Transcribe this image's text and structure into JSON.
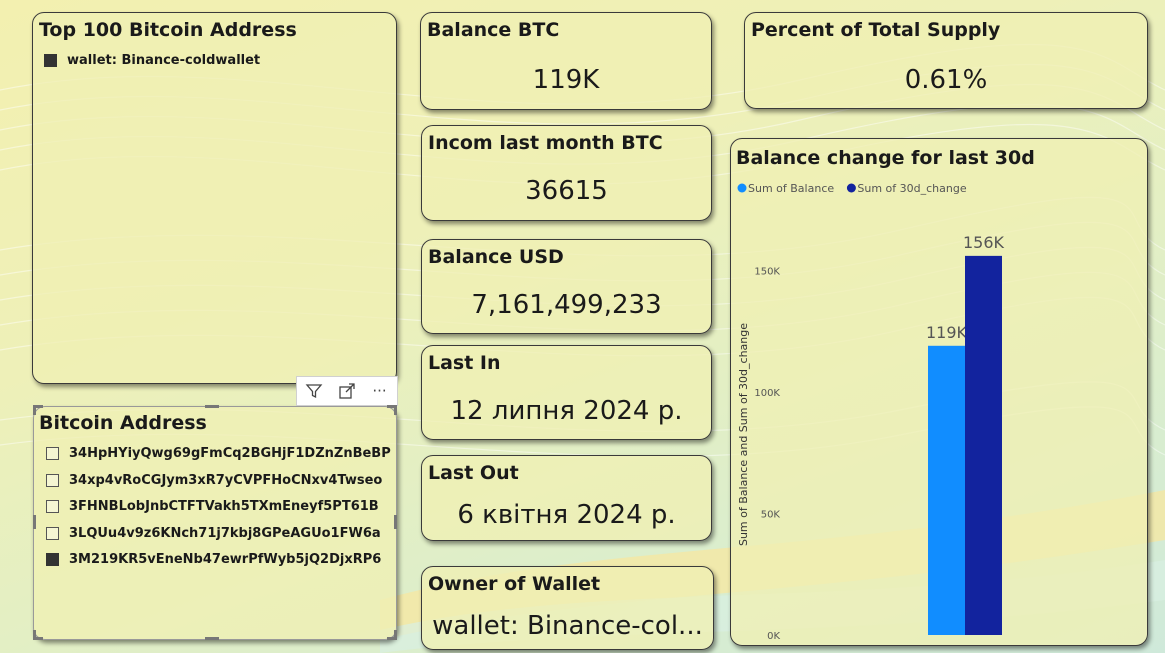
{
  "top_addresses": {
    "title": "Top 100 Bitcoin Address",
    "legend": [
      {
        "label": "wallet: Binance-coldwallet",
        "checked": true
      }
    ]
  },
  "slicer": {
    "title": "Bitcoin Address",
    "items": [
      {
        "label": "34HpHYiyQwg69gFmCq2BGHjF1DZnZnBeBP",
        "checked": false
      },
      {
        "label": "34xp4vRoCGJym3xR7yCVPFHoCNxv4Twseo",
        "checked": false
      },
      {
        "label": "3FHNBLobJnbCTFTVakh5TXmEneyf5PT61B",
        "checked": false
      },
      {
        "label": "3LQUu4v9z6KNch71j7kbj8GPeAGUo1FW6a",
        "checked": false
      },
      {
        "label": "3M219KR5vEneNb47ewrPfWyb5jQ2DjxRP6",
        "checked": true
      }
    ]
  },
  "toolbar": {
    "filter_icon": "filter-icon",
    "focus_icon": "focus-mode-icon",
    "more_icon": "more-options-icon",
    "more_label": "···"
  },
  "cards": {
    "balance_btc": {
      "title": "Balance BTC",
      "value": "119K"
    },
    "percent_supply": {
      "title": "Percent of Total Supply",
      "value": "0.61%"
    },
    "income_last_month": {
      "title": "Incom last month BTC",
      "value": "36615"
    },
    "balance_usd": {
      "title": "Balance USD",
      "value": "7,161,499,233"
    },
    "last_in": {
      "title": "Last In",
      "value": "12 липня 2024 р."
    },
    "last_out": {
      "title": "Last Out",
      "value": "6 квітня 2024 р."
    },
    "owner": {
      "title": "Owner of Wallet",
      "value": "wallet: Binance-col..."
    }
  },
  "colors": {
    "balance": "#118dff",
    "change": "#12239e",
    "card_bg": "#f0f0b4"
  },
  "chart_data": {
    "type": "bar",
    "title": "Balance change for last 30d",
    "xlabel": "",
    "ylabel": "Sum of Balance and Sum of 30d_change",
    "ylim": [
      0,
      165000
    ],
    "yticks": [
      0,
      50000,
      100000,
      150000
    ],
    "ytick_labels": [
      "0K",
      "50K",
      "100K",
      "150K"
    ],
    "categories": [
      ""
    ],
    "series": [
      {
        "name": "Sum of Balance",
        "values": [
          119000
        ],
        "data_label": "119K",
        "color": "#118dff"
      },
      {
        "name": "Sum of 30d_change",
        "values": [
          156000
        ],
        "data_label": "156K",
        "color": "#12239e"
      }
    ],
    "legend_position": "top-left",
    "grid": false
  }
}
